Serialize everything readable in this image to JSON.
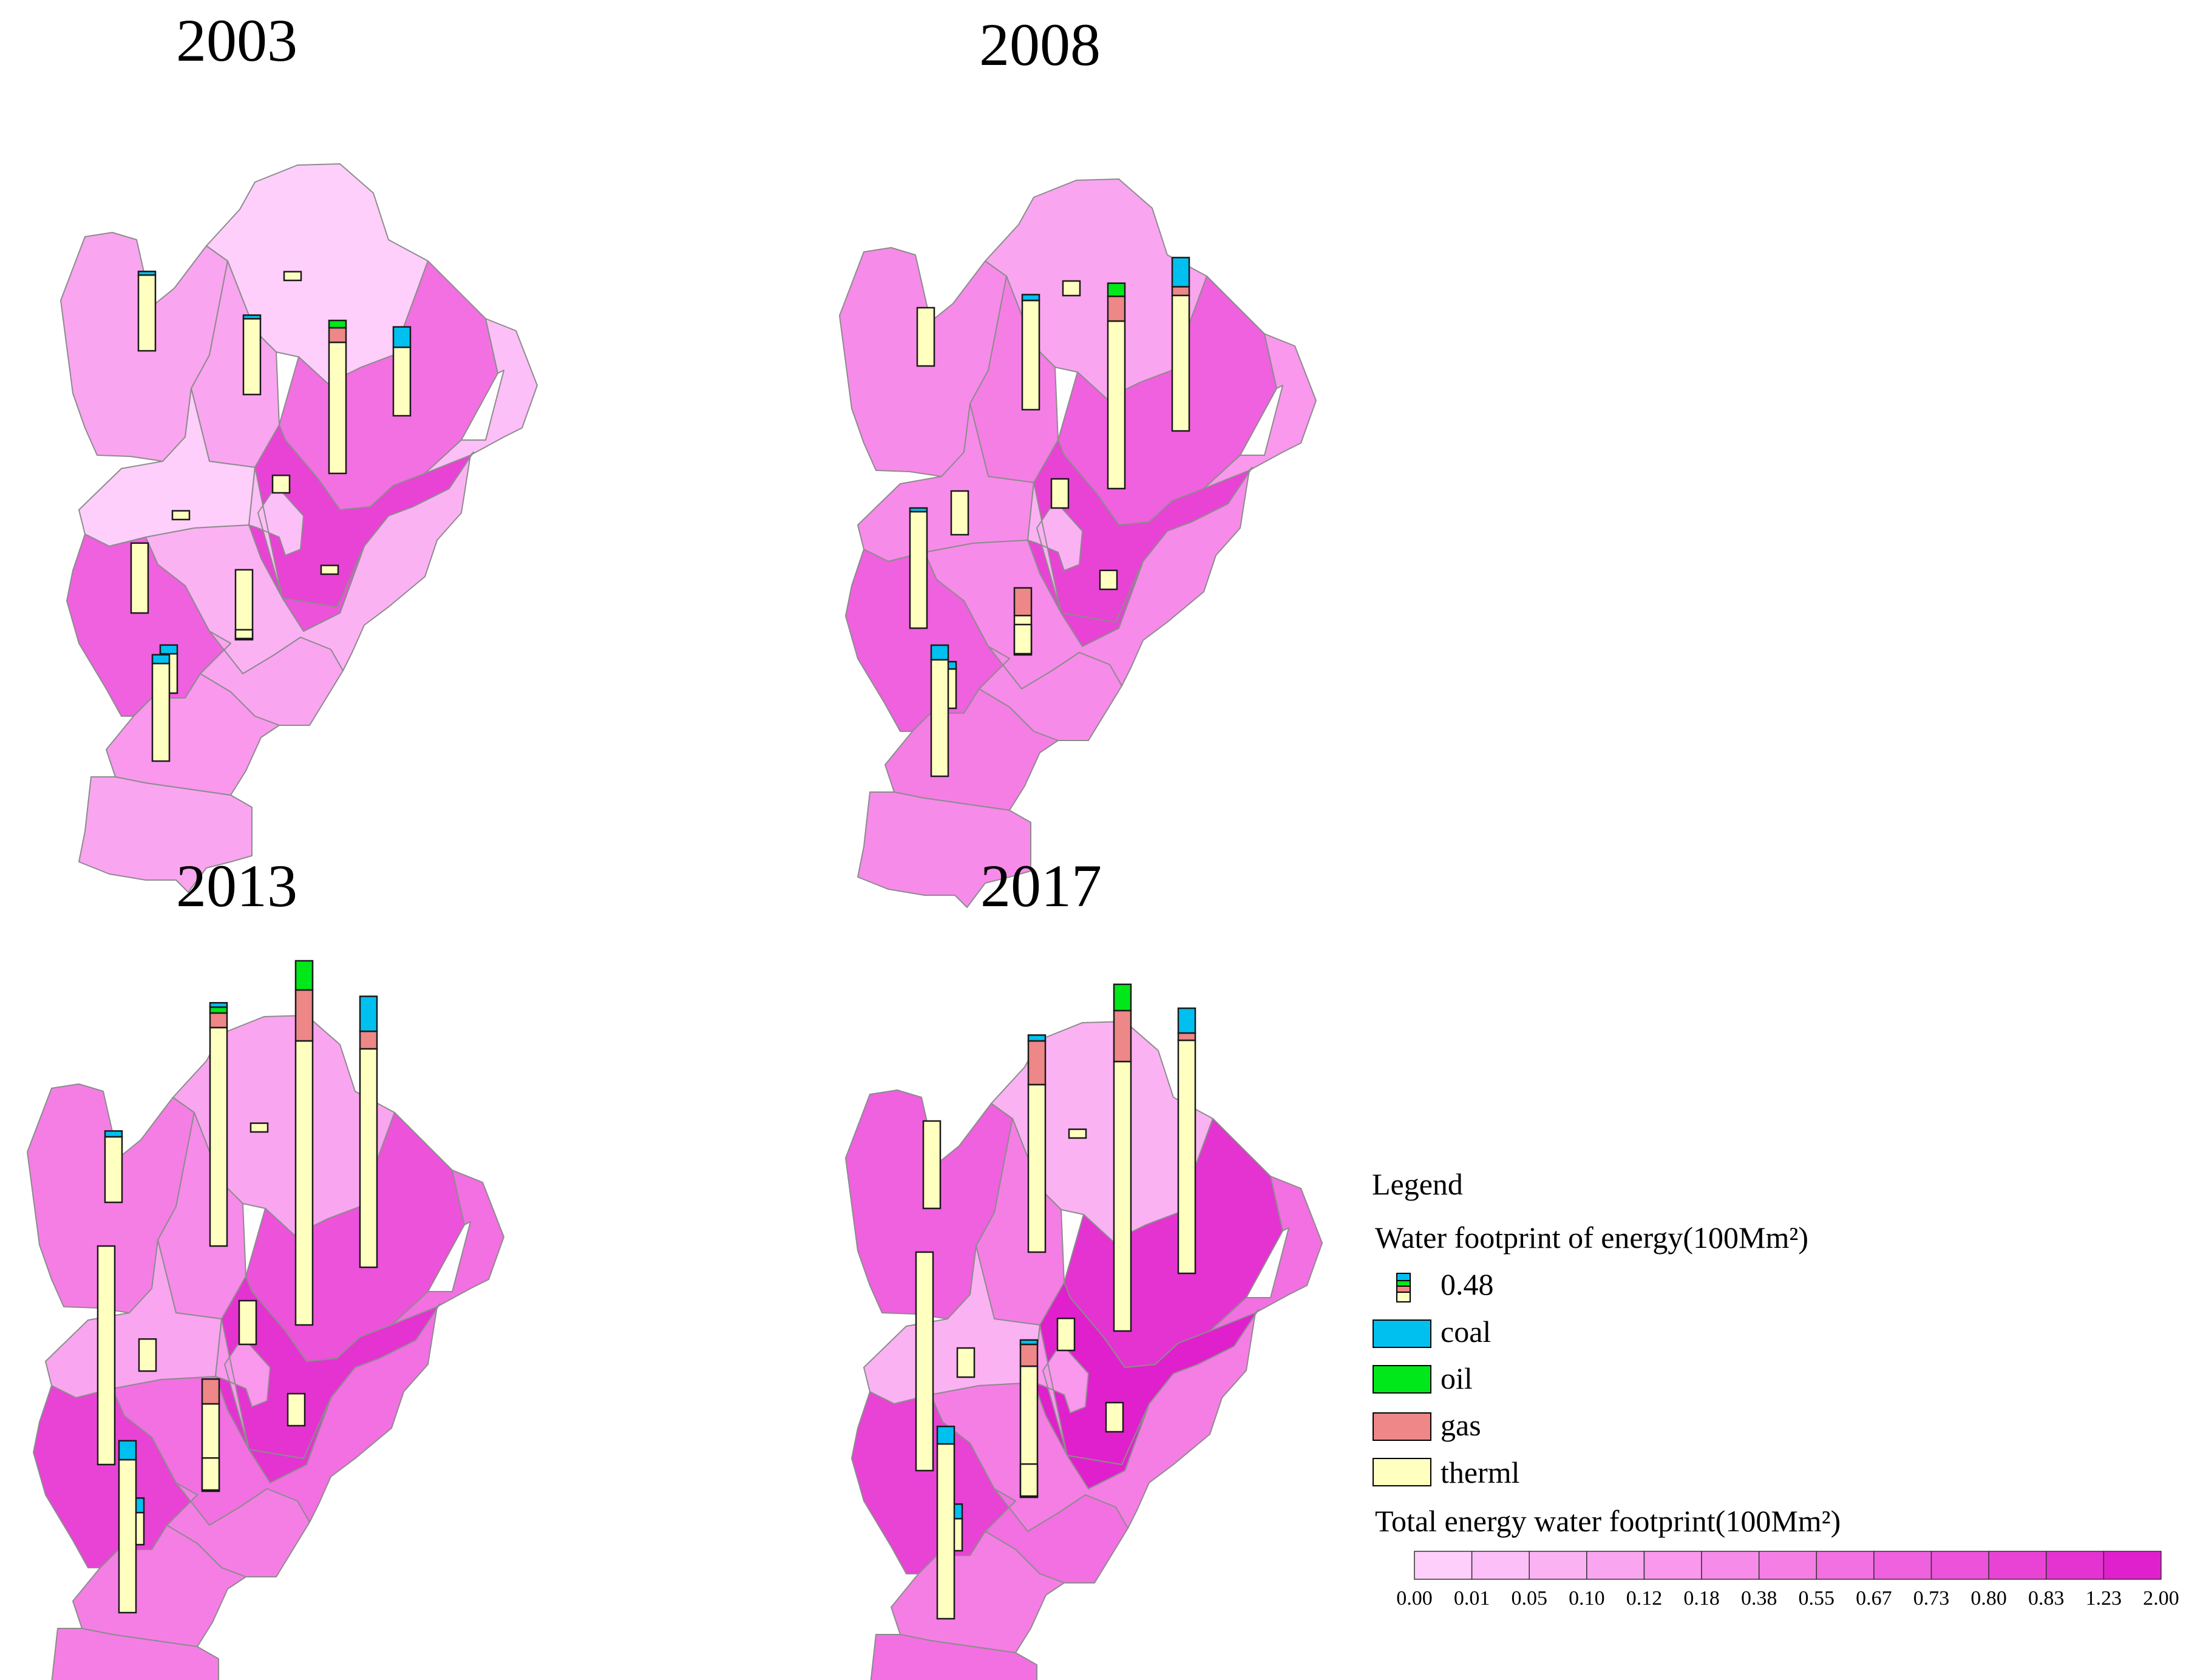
{
  "maps": [
    {
      "year": "2003",
      "region_classes": [
        4,
        1,
        8,
        4,
        1,
        11,
        2,
        2,
        3,
        9,
        4,
        5,
        4,
        10
      ],
      "bars": [
        {
          "coal": 0.02,
          "oil": 0,
          "gas": 0,
          "therml": 0.52
        },
        {
          "coal": 0,
          "oil": 0,
          "gas": 0,
          "therml": 0.06
        },
        {
          "coal": 0.02,
          "oil": 0,
          "gas": 0,
          "therml": 0.52
        },
        {
          "coal": 0,
          "oil": 0.05,
          "gas": 0.1,
          "therml": 0.9
        },
        {
          "coal": 0.14,
          "oil": 0,
          "gas": 0,
          "therml": 0.47
        },
        {
          "coal": 0,
          "oil": 0,
          "gas": 0,
          "therml": 0.12
        },
        {
          "coal": 0,
          "oil": 0,
          "gas": 0,
          "therml": 0.06
        },
        {
          "coal": 0,
          "oil": 0,
          "gas": 0,
          "therml": 0.06
        },
        {
          "coal": 0,
          "oil": 0,
          "gas": 0,
          "therml": 0.48
        },
        {
          "coal": 0,
          "oil": 0,
          "gas": 0,
          "therml": 0.48
        },
        {
          "coal": 0,
          "oil": 0,
          "gas": 0,
          "therml": 0.06
        },
        {
          "coal": 0.06,
          "oil": 0,
          "gas": 0,
          "therml": 0.27
        },
        {
          "coal": 0.06,
          "oil": 0,
          "gas": 0,
          "therml": 0.67
        }
      ]
    },
    {
      "year": "2008",
      "region_classes": [
        6,
        4,
        9,
        7,
        6,
        11,
        5,
        3,
        6,
        9,
        6,
        7,
        6,
        11
      ],
      "bars": [
        {
          "coal": 0,
          "oil": 0,
          "gas": 0,
          "therml": 0.4
        },
        {
          "coal": 0,
          "oil": 0,
          "gas": 0,
          "therml": 0.1
        },
        {
          "coal": 0.04,
          "oil": 0,
          "gas": 0,
          "therml": 0.75
        },
        {
          "coal": 0,
          "oil": 0.09,
          "gas": 0.17,
          "therml": 1.15
        },
        {
          "coal": 0.2,
          "oil": 0,
          "gas": 0.06,
          "therml": 0.93
        },
        {
          "coal": 0,
          "oil": 0,
          "gas": 0,
          "therml": 0.2
        },
        {
          "coal": 0,
          "oil": 0,
          "gas": 0,
          "therml": 0.3
        },
        {
          "coal": 0,
          "oil": 0,
          "gas": 0,
          "therml": 0.13
        },
        {
          "coal": 0.02,
          "oil": 0,
          "gas": 0,
          "therml": 0.8
        },
        {
          "coal": 0,
          "oil": 0,
          "gas": 0.19,
          "therml": 0.27
        },
        {
          "coal": 0,
          "oil": 0,
          "gas": 0,
          "therml": 0.2
        },
        {
          "coal": 0.05,
          "oil": 0,
          "gas": 0,
          "therml": 0.27
        },
        {
          "coal": 0.1,
          "oil": 0,
          "gas": 0,
          "therml": 0.8
        }
      ]
    },
    {
      "year": "2013",
      "region_classes": [
        7,
        4,
        10,
        6,
        4,
        12,
        8,
        5,
        8,
        11,
        7,
        7,
        7,
        12
      ],
      "bars": [
        {
          "coal": 0.04,
          "oil": 0,
          "gas": 0,
          "therml": 0.45
        },
        {
          "coal": 0,
          "oil": 0,
          "gas": 0,
          "therml": 0.06
        },
        {
          "coal": 0.03,
          "oil": 0.04,
          "gas": 0.1,
          "therml": 1.5
        },
        {
          "coal": 0,
          "oil": 0.2,
          "gas": 0.35,
          "therml": 1.95
        },
        {
          "coal": 0.24,
          "oil": 0,
          "gas": 0.12,
          "therml": 1.5
        },
        {
          "coal": 0,
          "oil": 0,
          "gas": 0,
          "therml": 0.3
        },
        {
          "coal": 0,
          "oil": 0,
          "gas": 0,
          "therml": 0.22
        },
        {
          "coal": 0,
          "oil": 0,
          "gas": 0,
          "therml": 0.22
        },
        {
          "coal": 0,
          "oil": 0,
          "gas": 0,
          "therml": 1.5
        },
        {
          "coal": 0,
          "oil": 0,
          "gas": 0.17,
          "therml": 0.6
        },
        {
          "coal": 0,
          "oil": 0,
          "gas": 0,
          "therml": 0.22
        },
        {
          "coal": 0.1,
          "oil": 0,
          "gas": 0,
          "therml": 0.22
        },
        {
          "coal": 0.13,
          "oil": 0,
          "gas": 0,
          "therml": 1.05
        }
      ]
    },
    {
      "year": "2017",
      "region_classes": [
        9,
        3,
        12,
        7,
        3,
        13,
        8,
        5,
        7,
        11,
        8,
        7,
        8,
        13
      ],
      "bars": [
        {
          "coal": 0,
          "oil": 0,
          "gas": 0,
          "therml": 0.6
        },
        {
          "coal": 0,
          "oil": 0,
          "gas": 0,
          "therml": 0.06
        },
        {
          "coal": 0.04,
          "oil": 0,
          "gas": 0.3,
          "therml": 1.15
        },
        {
          "coal": 0,
          "oil": 0.18,
          "gas": 0.35,
          "therml": 1.85
        },
        {
          "coal": 0.17,
          "oil": 0,
          "gas": 0.05,
          "therml": 1.6
        },
        {
          "coal": 0,
          "oil": 0,
          "gas": 0,
          "therml": 0.22
        },
        {
          "coal": 0,
          "oil": 0,
          "gas": 0,
          "therml": 0.2
        },
        {
          "coal": 0,
          "oil": 0,
          "gas": 0,
          "therml": 0.2
        },
        {
          "coal": 0,
          "oil": 0,
          "gas": 0,
          "therml": 1.5
        },
        {
          "coal": 0.03,
          "oil": 0,
          "gas": 0.15,
          "therml": 0.9
        },
        {
          "coal": 0,
          "oil": 0,
          "gas": 0,
          "therml": 0.22
        },
        {
          "coal": 0.1,
          "oil": 0,
          "gas": 0,
          "therml": 0.22
        },
        {
          "coal": 0.12,
          "oil": 0,
          "gas": 0,
          "therml": 1.2
        }
      ]
    }
  ],
  "legend": {
    "title": "Legend",
    "bar_section_title": "Water footprint of energy(100Mm²)",
    "bar_scale_value": "0.48",
    "items": [
      {
        "label": "coal",
        "color": "#00c0f0"
      },
      {
        "label": "oil",
        "color": "#00e81a"
      },
      {
        "label": "gas",
        "color": "#ee8787"
      },
      {
        "label": "therml",
        "color": "#ffffc0"
      }
    ],
    "ramp_title": "Total energy water footprint(100Mm²)",
    "ramp_ticks": [
      "0.00",
      "0.01",
      "0.05",
      "0.10",
      "0.12",
      "0.18",
      "0.38",
      "0.55",
      "0.67",
      "0.73",
      "0.80",
      "0.83",
      "1.23",
      "2.00"
    ],
    "ramp_colors": [
      "#ffcffb",
      "#fdbff7",
      "#fbb2f3",
      "#faa5f0",
      "#f998ed",
      "#f78be9",
      "#f57ee5",
      "#f270e2",
      "#ef61de",
      "#ec52da",
      "#e843d5",
      "#e433d1",
      "#e020cc"
    ]
  }
}
